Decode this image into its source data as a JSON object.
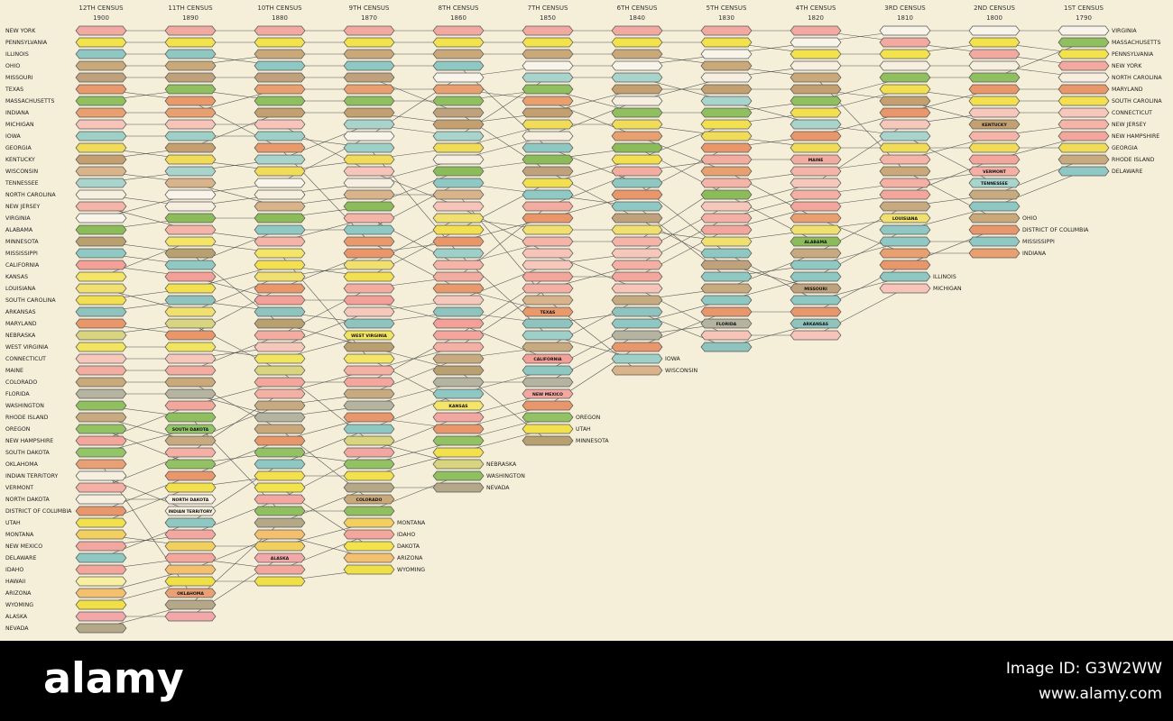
{
  "chart_data": {
    "type": "rank-flow",
    "censuses": [
      {
        "name": "12TH CENSUS",
        "year": "1900"
      },
      {
        "name": "11TH CENSUS",
        "year": "1890"
      },
      {
        "name": "10TH CENSUS",
        "year": "1880"
      },
      {
        "name": "9TH CENSUS",
        "year": "1870"
      },
      {
        "name": "8TH CENSUS",
        "year": "1860"
      },
      {
        "name": "7TH CENSUS",
        "year": "1850"
      },
      {
        "name": "6TH CENSUS",
        "year": "1840"
      },
      {
        "name": "5TH CENSUS",
        "year": "1830"
      },
      {
        "name": "4TH CENSUS",
        "year": "1820"
      },
      {
        "name": "3RD CENSUS",
        "year": "1810"
      },
      {
        "name": "2ND CENSUS",
        "year": "1800"
      },
      {
        "name": "1ST CENSUS",
        "year": "1790"
      }
    ],
    "series": [
      {
        "name": "NEW YORK",
        "color": "#f2a9a0",
        "ranks": [
          1,
          1,
          1,
          1,
          1,
          1,
          1,
          1,
          1,
          2,
          3,
          4
        ]
      },
      {
        "name": "PENNSYLVANIA",
        "color": "#f2e24c",
        "ranks": [
          2,
          2,
          2,
          2,
          2,
          2,
          2,
          2,
          3,
          3,
          2,
          3
        ]
      },
      {
        "name": "ILLINOIS",
        "color": "#8fc7c2",
        "ranks": [
          3,
          3,
          4,
          4,
          4,
          11,
          14,
          20,
          24,
          22,
          null,
          null
        ]
      },
      {
        "name": "OHIO",
        "color": "#c9a87a",
        "ranks": [
          4,
          4,
          3,
          3,
          3,
          3,
          3,
          4,
          5,
          13,
          17,
          null
        ]
      },
      {
        "name": "MISSOURI",
        "color": "#bfa27c",
        "ranks": [
          5,
          5,
          5,
          5,
          8,
          13,
          17,
          21,
          23,
          null,
          null,
          null
        ]
      },
      {
        "name": "TEXAS",
        "color": "#e89a6c",
        "ranks": [
          6,
          7,
          11,
          19,
          23,
          25,
          null,
          null,
          null,
          null,
          null,
          null
        ]
      },
      {
        "name": "MASSACHUSETTS",
        "color": "#8fbf5e",
        "ranks": [
          7,
          6,
          7,
          7,
          7,
          6,
          8,
          8,
          7,
          5,
          5,
          2
        ]
      },
      {
        "name": "INDIANA",
        "color": "#e8a070",
        "ranks": [
          8,
          8,
          6,
          6,
          6,
          7,
          10,
          13,
          17,
          20,
          20,
          null
        ]
      },
      {
        "name": "MICHIGAN",
        "color": "#f6c4b8",
        "ranks": [
          9,
          9,
          9,
          13,
          16,
          20,
          23,
          27,
          27,
          23,
          null,
          null
        ]
      },
      {
        "name": "IOWA",
        "color": "#9fd0c8",
        "ranks": [
          10,
          10,
          10,
          11,
          20,
          27,
          29,
          null,
          null,
          null,
          null,
          null
        ]
      },
      {
        "name": "GEORGIA",
        "color": "#f0dc58",
        "ranks": [
          11,
          12,
          13,
          12,
          11,
          9,
          9,
          10,
          11,
          11,
          11,
          11
        ]
      },
      {
        "name": "KENTUCKY",
        "color": "#c4a070",
        "ranks": [
          12,
          11,
          8,
          8,
          9,
          8,
          6,
          6,
          6,
          7,
          9,
          null
        ]
      },
      {
        "name": "WISCONSIN",
        "color": "#d9b48a",
        "ranks": [
          13,
          14,
          16,
          15,
          15,
          24,
          30,
          null,
          null,
          null,
          null,
          null
        ]
      },
      {
        "name": "TENNESSEE",
        "color": "#a8d4cc",
        "ranks": [
          14,
          13,
          12,
          9,
          10,
          5,
          5,
          7,
          9,
          10,
          14,
          null
        ]
      },
      {
        "name": "NORTH CAROLINA",
        "color": "#f6efe0",
        "ranks": [
          15,
          16,
          15,
          14,
          12,
          10,
          7,
          5,
          4,
          4,
          4,
          5
        ]
      },
      {
        "name": "NEW JERSEY",
        "color": "#f4b4a8",
        "ranks": [
          16,
          18,
          19,
          17,
          21,
          19,
          19,
          14,
          13,
          12,
          10,
          9
        ]
      },
      {
        "name": "VIRGINIA",
        "color": "#f8f4ea",
        "ranks": [
          17,
          15,
          14,
          10,
          5,
          4,
          4,
          3,
          2,
          1,
          1,
          1
        ]
      },
      {
        "name": "ALABAMA",
        "color": "#8cbc5a",
        "ranks": [
          18,
          17,
          17,
          16,
          13,
          12,
          11,
          15,
          19,
          null,
          null,
          null
        ]
      },
      {
        "name": "MINNESOTA",
        "color": "#b8a070",
        "ranks": [
          19,
          20,
          26,
          28,
          30,
          36,
          null,
          null,
          null,
          null,
          null,
          null
        ]
      },
      {
        "name": "MISSISSIPPI",
        "color": "#90c8c4",
        "ranks": [
          20,
          21,
          18,
          18,
          14,
          15,
          16,
          22,
          21,
          19,
          19,
          null
        ]
      },
      {
        "name": "CALIFORNIA",
        "color": "#f2a098",
        "ranks": [
          21,
          22,
          24,
          24,
          26,
          29,
          null,
          null,
          null,
          null,
          null,
          null
        ]
      },
      {
        "name": "KANSAS",
        "color": "#f4e468",
        "ranks": [
          22,
          19,
          20,
          29,
          33,
          null,
          null,
          null,
          null,
          null,
          null,
          null
        ]
      },
      {
        "name": "LOUISIANA",
        "color": "#f0e070",
        "ranks": [
          23,
          25,
          22,
          21,
          17,
          18,
          18,
          19,
          18,
          17,
          null,
          null
        ]
      },
      {
        "name": "SOUTH CAROLINA",
        "color": "#f2e050",
        "ranks": [
          24,
          23,
          21,
          22,
          18,
          14,
          12,
          9,
          8,
          6,
          7,
          7
        ]
      },
      {
        "name": "ARKANSAS",
        "color": "#8fc4be",
        "ranks": [
          25,
          24,
          25,
          26,
          25,
          26,
          25,
          28,
          26,
          null,
          null,
          null
        ]
      },
      {
        "name": "MARYLAND",
        "color": "#e8966a",
        "ranks": [
          26,
          27,
          23,
          20,
          19,
          17,
          15,
          11,
          10,
          8,
          6,
          6
        ]
      },
      {
        "name": "NEBRASKA",
        "color": "#d8d480",
        "ranks": [
          27,
          26,
          30,
          36,
          38,
          null,
          null,
          null,
          null,
          null,
          null,
          null
        ]
      },
      {
        "name": "WEST VIRGINIA",
        "color": "#f0e460",
        "ranks": [
          28,
          28,
          29,
          27,
          null,
          null,
          null,
          null,
          null,
          null,
          null,
          null
        ]
      },
      {
        "name": "CONNECTICUT",
        "color": "#f6c8bc",
        "ranks": [
          29,
          29,
          28,
          25,
          24,
          21,
          20,
          16,
          14,
          9,
          8,
          8
        ]
      },
      {
        "name": "MAINE",
        "color": "#f2aca0",
        "ranks": [
          30,
          30,
          27,
          23,
          22,
          16,
          13,
          12,
          12,
          null,
          null,
          null
        ]
      },
      {
        "name": "COLORADO",
        "color": "#c9a87a",
        "ranks": [
          31,
          31,
          35,
          41,
          null,
          null,
          null,
          null,
          null,
          null,
          null,
          null
        ]
      },
      {
        "name": "FLORIDA",
        "color": "#b4b4a0",
        "ranks": [
          32,
          32,
          34,
          33,
          31,
          31,
          27,
          26,
          null,
          null,
          null,
          null
        ]
      },
      {
        "name": "WASHINGTON",
        "color": "#8fbf5e",
        "ranks": [
          33,
          34,
          42,
          42,
          39,
          null,
          null,
          null,
          null,
          null,
          null,
          null
        ]
      },
      {
        "name": "RHODE ISLAND",
        "color": "#c8aa80",
        "ranks": [
          34,
          36,
          33,
          32,
          29,
          28,
          24,
          23,
          20,
          16,
          15,
          12
        ]
      },
      {
        "name": "OREGON",
        "color": "#92c264",
        "ranks": [
          35,
          38,
          37,
          38,
          36,
          34,
          null,
          null,
          null,
          null,
          null,
          null
        ]
      },
      {
        "name": "NEW HAMPSHIRE",
        "color": "#f2a69c",
        "ranks": [
          36,
          33,
          31,
          31,
          27,
          22,
          22,
          18,
          16,
          15,
          12,
          10
        ]
      },
      {
        "name": "SOUTH DAKOTA",
        "color": "#94c468",
        "ranks": [
          37,
          35,
          null,
          null,
          null,
          null,
          null,
          null,
          null,
          null,
          null,
          null
        ]
      },
      {
        "name": "OKLAHOMA",
        "color": "#e8a074",
        "ranks": [
          38,
          49,
          null,
          null,
          null,
          null,
          null,
          null,
          null,
          null,
          null,
          null
        ]
      },
      {
        "name": "INDIAN TERRITORY",
        "color": "#f6efe0",
        "ranks": [
          39,
          42,
          null,
          null,
          null,
          null,
          null,
          null,
          null,
          null,
          null,
          null
        ]
      },
      {
        "name": "VERMONT",
        "color": "#f4b0a4",
        "ranks": [
          40,
          37,
          32,
          30,
          28,
          23,
          21,
          17,
          15,
          14,
          13,
          null
        ]
      },
      {
        "name": "NORTH DAKOTA",
        "color": "#f6efe0",
        "ranks": [
          41,
          41,
          null,
          null,
          null,
          null,
          null,
          null,
          null,
          null,
          null,
          null
        ]
      },
      {
        "name": "DISTRICT OF COLUMBIA",
        "color": "#e8966c",
        "ranks": [
          42,
          39,
          36,
          34,
          35,
          33,
          28,
          25,
          25,
          21,
          18,
          null
        ]
      },
      {
        "name": "UTAH",
        "color": "#f2e04c",
        "ranks": [
          43,
          40,
          39,
          39,
          37,
          35,
          null,
          null,
          null,
          null,
          null,
          null
        ]
      },
      {
        "name": "MONTANA",
        "color": "#f2d060",
        "ranks": [
          44,
          45,
          45,
          43,
          null,
          null,
          null,
          null,
          null,
          null,
          null,
          null
        ]
      },
      {
        "name": "NEW MEXICO",
        "color": "#f2a8a0",
        "ranks": [
          45,
          44,
          41,
          37,
          34,
          32,
          null,
          null,
          null,
          null,
          null,
          null
        ]
      },
      {
        "name": "DELAWARE",
        "color": "#8fc7c2",
        "ranks": [
          46,
          43,
          38,
          35,
          32,
          30,
          26,
          24,
          22,
          18,
          16,
          13
        ]
      },
      {
        "name": "IDAHO",
        "color": "#f2a69c",
        "ranks": [
          47,
          46,
          47,
          44,
          null,
          null,
          null,
          null,
          null,
          null,
          null,
          null
        ]
      },
      {
        "name": "HAWAII",
        "color": "#f8f0a0",
        "ranks": [
          48,
          null,
          null,
          null,
          null,
          null,
          null,
          null,
          null,
          null,
          null,
          null
        ]
      },
      {
        "name": "ARIZONA",
        "color": "#f4c070",
        "ranks": [
          49,
          47,
          44,
          46,
          null,
          null,
          null,
          null,
          null,
          null,
          null,
          null
        ]
      },
      {
        "name": "WYOMING",
        "color": "#f0e048",
        "ranks": [
          50,
          48,
          48,
          47,
          null,
          null,
          null,
          null,
          null,
          null,
          null,
          null
        ]
      },
      {
        "name": "ALASKA",
        "color": "#f2a8a8",
        "ranks": [
          51,
          51,
          46,
          null,
          null,
          null,
          null,
          null,
          null,
          null,
          null,
          null
        ]
      },
      {
        "name": "NEVADA",
        "color": "#b4a888",
        "ranks": [
          52,
          50,
          43,
          40,
          40,
          null,
          null,
          null,
          null,
          null,
          null,
          null
        ]
      },
      {
        "name": "DAKOTA",
        "color": "#f2e24c",
        "ranks": [
          null,
          null,
          40,
          45,
          null,
          null,
          null,
          null,
          null,
          null,
          null,
          null
        ]
      }
    ]
  },
  "watermark": {
    "logo": "alamy",
    "image_id": "Image ID: G3W2WW",
    "url": "www.alamy.com"
  }
}
